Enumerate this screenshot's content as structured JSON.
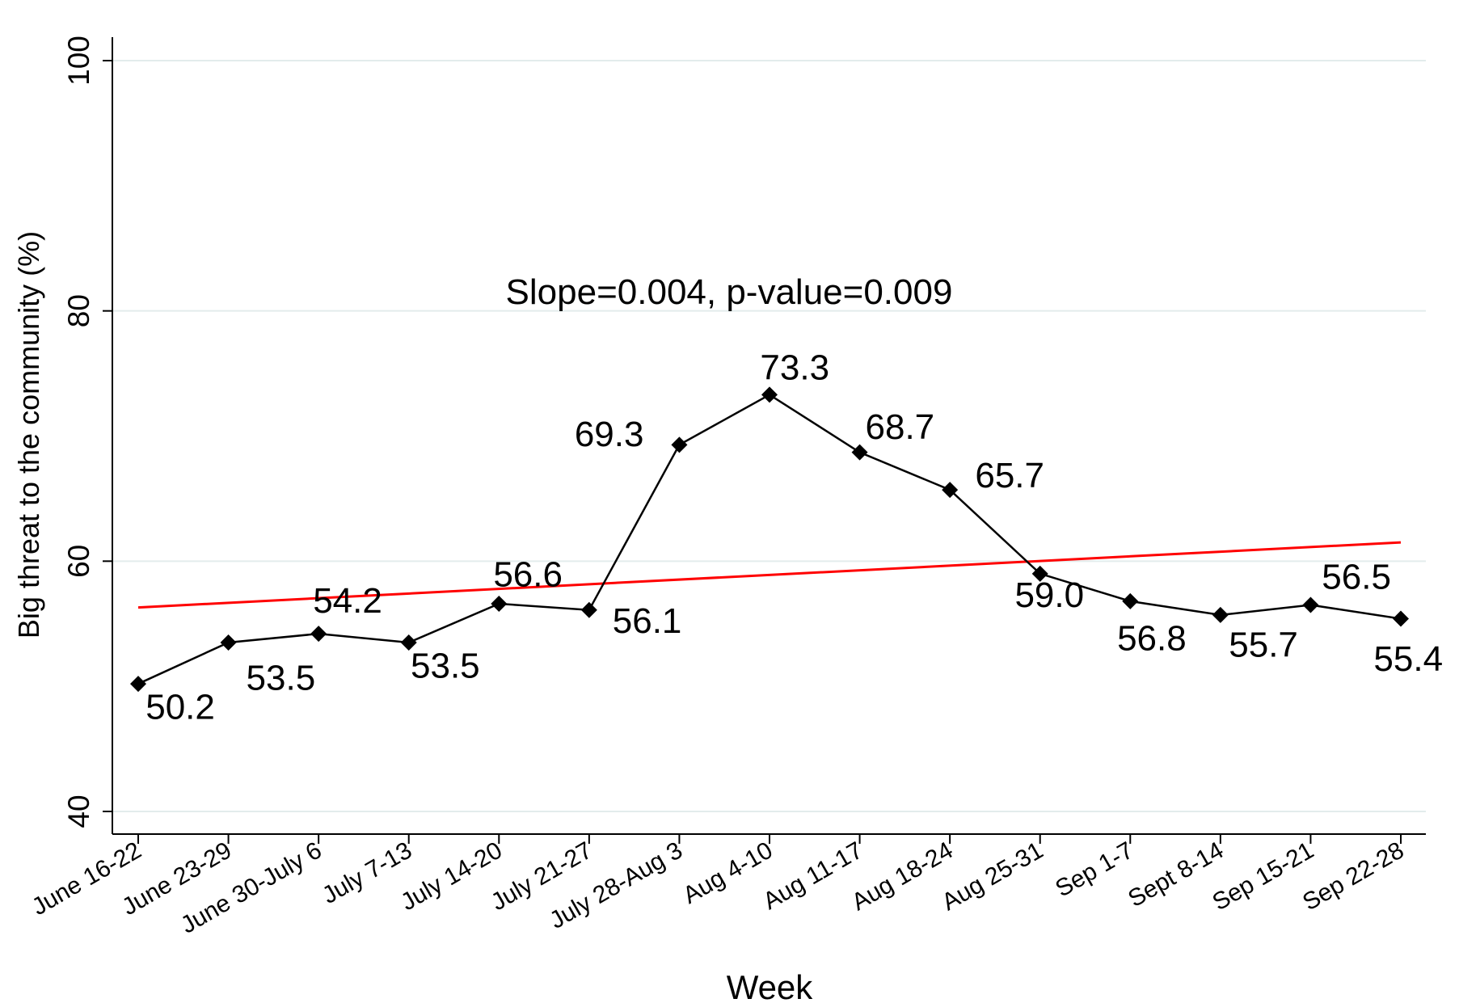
{
  "chart_data": {
    "type": "line",
    "xlabel": "Week",
    "ylabel": "Big threat to the community (%)",
    "ylim": [
      40,
      100
    ],
    "yticks": [
      40,
      60,
      80,
      100
    ],
    "grid": true,
    "categories": [
      "June 16-22",
      "June 23-29",
      "June 30-July 6",
      "July 7-13",
      "July 14-20",
      "July 21-27",
      "July 28-Aug 3",
      "Aug 4-10",
      "Aug 11-17",
      "Aug 18-24",
      "Aug 25-31",
      "Sep 1-7",
      "Sept 8-14",
      "Sep 15-21",
      "Sep 22-28"
    ],
    "series": [
      {
        "values": [
          50.2,
          53.5,
          54.2,
          53.5,
          56.6,
          56.1,
          69.3,
          73.3,
          68.7,
          65.7,
          59.0,
          56.8,
          55.7,
          56.5,
          55.4
        ],
        "labels": [
          "50.2",
          "53.5",
          "54.2",
          "53.5",
          "56.6",
          "56.1",
          "69.3",
          "73.3",
          "68.7",
          "65.7",
          "59.0",
          "56.8",
          "55.7",
          "56.5",
          "55.4"
        ],
        "color": "#000000",
        "marker": "diamond"
      }
    ],
    "trendline": {
      "start": 56.3,
      "end": 61.5,
      "color": "#ff0000"
    },
    "annotation": "Slope=0.004, p-value=0.009"
  }
}
